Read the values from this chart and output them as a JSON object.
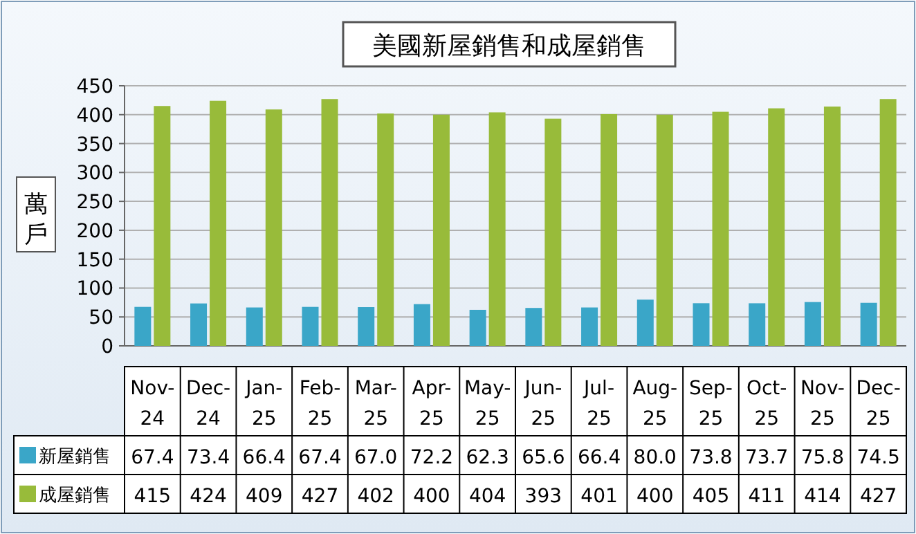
{
  "chart_data": {
    "type": "bar",
    "title": "美國新屋銷售和成屋銷售",
    "ylabel": "萬戶",
    "categories": [
      "Nov-24",
      "Dec-24",
      "Jan-25",
      "Feb-25",
      "Mar-25",
      "Apr-25",
      "May-25",
      "Jun-25",
      "Jul-25",
      "Aug-25",
      "Sep-25",
      "Oct-25",
      "Nov-25",
      "Dec-25"
    ],
    "series": [
      {
        "name": "新屋銷售",
        "color": "#3aa6c8",
        "values": [
          67.4,
          73.4,
          66.4,
          67.4,
          67.0,
          72.2,
          62.3,
          65.6,
          66.4,
          80.0,
          73.8,
          73.7,
          75.8,
          74.5
        ],
        "value_labels": [
          "67.4",
          "73.4",
          "66.4",
          "67.4",
          "67.0",
          "72.2",
          "62.3",
          "65.6",
          "66.4",
          "80.0",
          "73.8",
          "73.7",
          "75.8",
          "74.5"
        ]
      },
      {
        "name": "成屋銷售",
        "color": "#98bb3a",
        "values": [
          415,
          424,
          409,
          427,
          402,
          400,
          404,
          393,
          401,
          400,
          405,
          411,
          414,
          427
        ],
        "value_labels": [
          "415",
          "424",
          "409",
          "427",
          "402",
          "400",
          "404",
          "393",
          "401",
          "400",
          "405",
          "411",
          "414",
          "427"
        ]
      }
    ],
    "ylim": [
      0,
      450
    ],
    "yticks": [
      0,
      50,
      100,
      150,
      200,
      250,
      300,
      350,
      400,
      450
    ],
    "grid": "y",
    "legend": "bottom"
  }
}
